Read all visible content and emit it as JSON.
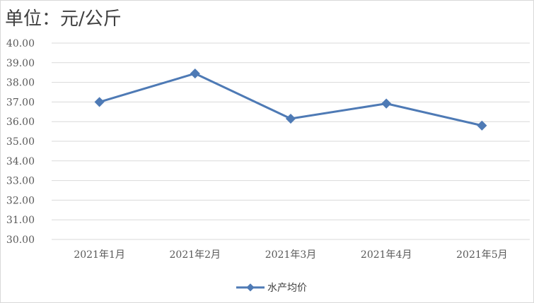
{
  "chart_data": {
    "type": "line",
    "title": "单位：元/公斤",
    "xlabel": "",
    "ylabel": "",
    "categories": [
      "2021年1月",
      "2021年2月",
      "2021年3月",
      "2021年4月",
      "2021年5月"
    ],
    "series": [
      {
        "name": "水产均价",
        "values": [
          37.0,
          38.45,
          36.15,
          36.92,
          35.8
        ]
      }
    ],
    "ylim": [
      30,
      40
    ],
    "yticks": [
      "40.00",
      "39.00",
      "38.00",
      "37.00",
      "36.00",
      "35.00",
      "34.00",
      "33.00",
      "32.00",
      "31.00",
      "30.00"
    ],
    "grid": "horizontal",
    "legend_position": "bottom",
    "colors": {
      "series": "#4e7ab5",
      "grid": "#d9d9d9",
      "text": "#595959"
    }
  }
}
